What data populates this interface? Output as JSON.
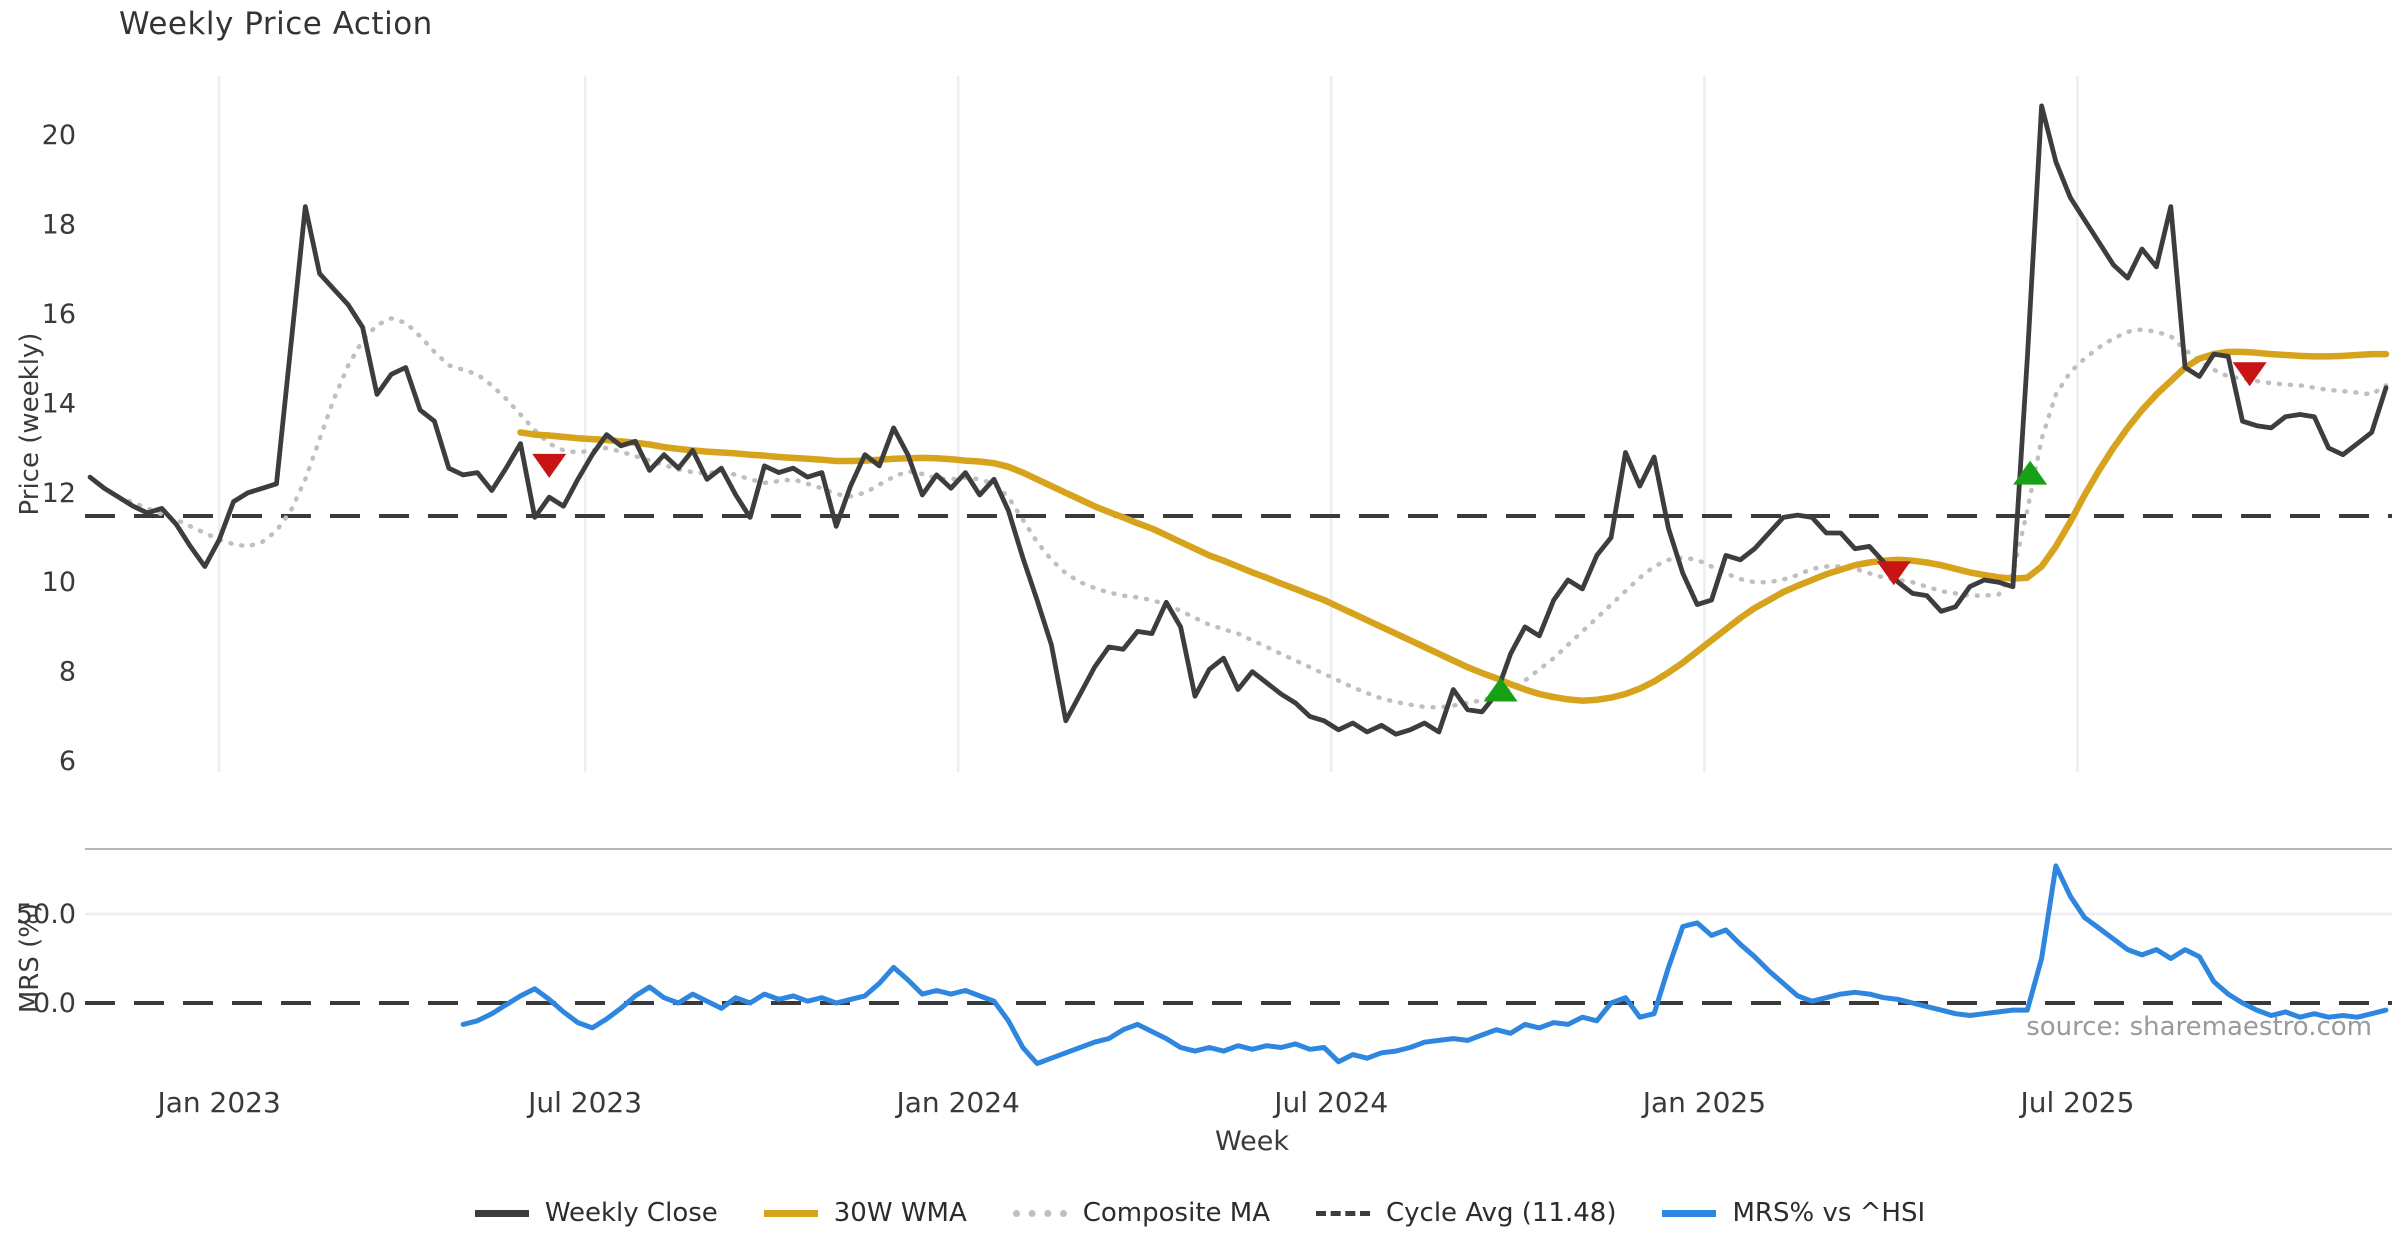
{
  "title": "Weekly Price Action",
  "source_note": "source: sharemaestro.com",
  "colors": {
    "weekly_close": "#3d3d3d",
    "wma_30w": "#d7a31c",
    "composite_ma": "#bfbfbf",
    "cycle_avg": "#3a3a3a",
    "mrs": "#2e86de",
    "sell_marker": "#c81414",
    "buy_marker": "#16a016",
    "grid": "#ededf2",
    "panel_spine": "#b5b5bc",
    "tick_text": "#3a3a3a",
    "background": "#ffffff"
  },
  "axes": {
    "price_label": "Price (weekly)",
    "mrs_label": "MRS (%)",
    "week_label": "Week",
    "price_ticks": [
      6,
      8,
      10,
      12,
      14,
      16,
      18,
      20
    ],
    "mrs_ticks": [
      {
        "value": 0,
        "label": "0.0"
      },
      {
        "value": 50,
        "label": "50.0"
      }
    ],
    "x_ticks": [
      {
        "week": 9,
        "label": "Jan 2023"
      },
      {
        "week": 34.5,
        "label": "Jul 2023"
      },
      {
        "week": 60.5,
        "label": "Jan 2024"
      },
      {
        "week": 86.5,
        "label": "Jul 2024"
      },
      {
        "week": 112.5,
        "label": "Jan 2025"
      },
      {
        "week": 138.5,
        "label": "Jul 2025"
      }
    ]
  },
  "legend": {
    "items": [
      {
        "label": "Weekly Close",
        "style": "solid",
        "color": "#3d3d3d"
      },
      {
        "label": "30W WMA",
        "style": "solid",
        "color": "#d7a31c"
      },
      {
        "label": "Composite MA",
        "style": "dotted",
        "color": "#bfbfbf"
      },
      {
        "label": "Cycle Avg (11.48)",
        "style": "dashed",
        "color": "#3d3d3d"
      },
      {
        "label": "MRS% vs ^HSI",
        "style": "solid",
        "color": "#2e86de"
      }
    ]
  },
  "chart_data": [
    {
      "type": "line",
      "panel": "price",
      "title": "Weekly Price Action",
      "xlabel": "Week",
      "ylabel": "Price (weekly)",
      "ylim": [
        5.6,
        21.3
      ],
      "x_unit": "week index from first data point (early Nov 2022, weekly)",
      "cycle_avg_value": 11.48,
      "series": [
        {
          "name": "Weekly Close",
          "color": "#3d3d3d",
          "style": "solid",
          "start_week": 0,
          "values": [
            12.35,
            12.1,
            11.9,
            11.7,
            11.55,
            11.65,
            11.3,
            10.8,
            10.35,
            10.95,
            11.8,
            12.0,
            12.1,
            12.2,
            15.3,
            18.4,
            16.9,
            16.55,
            16.2,
            15.7,
            14.2,
            14.65,
            14.8,
            13.85,
            13.6,
            12.55,
            12.4,
            12.45,
            12.05,
            12.55,
            13.1,
            11.45,
            11.9,
            11.7,
            12.3,
            12.85,
            13.3,
            13.05,
            13.15,
            12.5,
            12.85,
            12.55,
            12.95,
            12.3,
            12.55,
            11.95,
            11.45,
            12.6,
            12.45,
            12.55,
            12.35,
            12.45,
            11.25,
            12.15,
            12.85,
            12.6,
            13.45,
            12.85,
            11.95,
            12.4,
            12.1,
            12.45,
            11.95,
            12.3,
            11.6,
            10.55,
            9.6,
            8.6,
            6.9,
            7.5,
            8.1,
            8.55,
            8.5,
            8.9,
            8.85,
            9.55,
            9.0,
            7.45,
            8.05,
            8.3,
            7.6,
            8.0,
            7.75,
            7.5,
            7.3,
            7.0,
            6.9,
            6.7,
            6.85,
            6.65,
            6.8,
            6.6,
            6.7,
            6.85,
            6.65,
            7.6,
            7.15,
            7.1,
            7.5,
            8.4,
            9.0,
            8.8,
            9.6,
            10.05,
            9.85,
            10.6,
            11.0,
            12.9,
            12.15,
            12.8,
            11.2,
            10.2,
            9.5,
            9.6,
            10.6,
            10.5,
            10.75,
            11.1,
            11.45,
            11.5,
            11.45,
            11.1,
            11.1,
            10.75,
            10.8,
            10.45,
            10.0,
            9.75,
            9.7,
            9.35,
            9.45,
            9.9,
            10.05,
            10.0,
            9.9,
            15.0,
            20.65,
            19.4,
            18.6,
            18.1,
            17.6,
            17.1,
            16.8,
            17.45,
            17.05,
            18.4,
            14.8,
            14.6,
            15.1,
            15.05,
            13.6,
            13.5,
            13.45,
            13.7,
            13.75,
            13.7,
            13.0,
            12.85,
            13.1,
            13.35,
            14.35
          ]
        },
        {
          "name": "30W WMA",
          "color": "#d7a31c",
          "style": "solid",
          "start_week": 30,
          "values": [
            13.35,
            13.3,
            13.28,
            13.25,
            13.22,
            13.2,
            13.18,
            13.15,
            13.12,
            13.08,
            13.02,
            12.98,
            12.95,
            12.92,
            12.9,
            12.88,
            12.85,
            12.83,
            12.8,
            12.78,
            12.76,
            12.74,
            12.71,
            12.71,
            12.72,
            12.74,
            12.76,
            12.77,
            12.78,
            12.77,
            12.75,
            12.72,
            12.7,
            12.66,
            12.58,
            12.45,
            12.3,
            12.15,
            12.0,
            11.85,
            11.7,
            11.57,
            11.45,
            11.32,
            11.2,
            11.05,
            10.9,
            10.75,
            10.6,
            10.48,
            10.35,
            10.22,
            10.1,
            9.97,
            9.85,
            9.72,
            9.6,
            9.45,
            9.3,
            9.15,
            9.0,
            8.85,
            8.7,
            8.55,
            8.4,
            8.25,
            8.1,
            7.97,
            7.85,
            7.72,
            7.6,
            7.5,
            7.43,
            7.38,
            7.35,
            7.37,
            7.42,
            7.5,
            7.62,
            7.78,
            7.98,
            8.2,
            8.45,
            8.7,
            8.95,
            9.2,
            9.42,
            9.6,
            9.78,
            9.92,
            10.05,
            10.18,
            10.28,
            10.38,
            10.44,
            10.48,
            10.5,
            10.48,
            10.44,
            10.38,
            10.3,
            10.22,
            10.16,
            10.11,
            10.08,
            10.1,
            10.35,
            10.8,
            11.35,
            11.95,
            12.5,
            13.0,
            13.45,
            13.85,
            14.2,
            14.5,
            14.8,
            15.0,
            15.1,
            15.15,
            15.15,
            15.13,
            15.1,
            15.08,
            15.06,
            15.05,
            15.05,
            15.06,
            15.08,
            15.1,
            15.1
          ]
        },
        {
          "name": "Composite MA",
          "color": "#bfbfbf",
          "style": "dotted",
          "start_week": 2,
          "values": [
            11.9,
            11.78,
            11.65,
            11.52,
            11.4,
            11.25,
            11.1,
            10.95,
            10.85,
            10.8,
            10.9,
            11.15,
            11.6,
            12.3,
            13.2,
            14.1,
            14.85,
            15.4,
            15.75,
            15.9,
            15.8,
            15.5,
            15.15,
            14.85,
            14.75,
            14.65,
            14.4,
            14.1,
            13.75,
            13.4,
            13.1,
            12.95,
            12.9,
            12.95,
            13.0,
            12.92,
            12.82,
            12.72,
            12.62,
            12.52,
            12.46,
            12.44,
            12.48,
            12.4,
            12.3,
            12.22,
            12.26,
            12.3,
            12.2,
            12.1,
            11.97,
            11.92,
            12.0,
            12.18,
            12.36,
            12.48,
            12.42,
            12.32,
            12.3,
            12.34,
            12.3,
            12.2,
            11.9,
            11.4,
            10.9,
            10.5,
            10.2,
            10.0,
            9.87,
            9.77,
            9.7,
            9.66,
            9.6,
            9.5,
            9.36,
            9.2,
            9.05,
            8.95,
            8.85,
            8.7,
            8.55,
            8.4,
            8.25,
            8.1,
            7.95,
            7.8,
            7.65,
            7.52,
            7.4,
            7.32,
            7.26,
            7.21,
            7.2,
            7.24,
            7.3,
            7.36,
            7.45,
            7.6,
            7.8,
            8.05,
            8.3,
            8.6,
            8.9,
            9.2,
            9.5,
            9.8,
            10.1,
            10.35,
            10.5,
            10.55,
            10.5,
            10.35,
            10.2,
            10.07,
            10.0,
            10.0,
            10.06,
            10.16,
            10.3,
            10.35,
            10.35,
            10.3,
            10.2,
            10.1,
            10.05,
            10.0,
            9.9,
            9.8,
            9.75,
            9.7,
            9.7,
            9.72,
            10.2,
            11.6,
            13.2,
            14.2,
            14.7,
            15.0,
            15.25,
            15.45,
            15.6,
            15.65,
            15.6,
            15.5,
            15.2,
            14.95,
            14.75,
            14.6,
            14.55,
            14.5,
            14.45,
            14.42,
            14.4,
            14.35,
            14.3,
            14.27,
            14.24,
            14.2,
            14.4
          ]
        }
      ],
      "markers": [
        {
          "type": "sell",
          "week": 32.0,
          "value": 12.6,
          "color": "#c81414"
        },
        {
          "type": "buy",
          "week": 98.3,
          "value": 7.6,
          "color": "#16a016"
        },
        {
          "type": "sell",
          "week": 125.7,
          "value": 10.2,
          "color": "#c81414"
        },
        {
          "type": "buy",
          "week": 135.2,
          "value": 12.45,
          "color": "#16a016"
        },
        {
          "type": "sell",
          "week": 150.5,
          "value": 14.65,
          "color": "#c81414"
        }
      ]
    },
    {
      "type": "line",
      "panel": "mrs",
      "ylabel": "MRS (%)",
      "ylim": [
        -42,
        86
      ],
      "zero_line": 0,
      "series": [
        {
          "name": "MRS% vs ^HSI",
          "color": "#2e86de",
          "style": "solid",
          "start_week": 26,
          "values": [
            -12,
            -10,
            -6,
            -1,
            4,
            8,
            2,
            -5,
            -11,
            -14,
            -9,
            -3,
            4,
            9,
            3,
            0,
            5,
            1,
            -3,
            3,
            0,
            5,
            2,
            4,
            1,
            3,
            0,
            2,
            4,
            11,
            20,
            13,
            5,
            7,
            5,
            7,
            4,
            1,
            -10,
            -25,
            -34,
            -31,
            -28,
            -25,
            -22,
            -20,
            -15,
            -12,
            -16,
            -20,
            -25,
            -27,
            -25,
            -27,
            -24,
            -26,
            -24,
            -25,
            -23,
            -26,
            -25,
            -33,
            -29,
            -31,
            -28,
            -27,
            -25,
            -22,
            -21,
            -20,
            -21,
            -18,
            -15,
            -17,
            -12,
            -14,
            -11,
            -12,
            -8,
            -10,
            0,
            3,
            -8,
            -6,
            20,
            43,
            45,
            38,
            41,
            33,
            26,
            18,
            11,
            4,
            1,
            3,
            5,
            6,
            5,
            3,
            2,
            0,
            -2,
            -4,
            -6,
            -7,
            -6,
            -5,
            -4,
            -4,
            25,
            77,
            60,
            48,
            42,
            36,
            30,
            27,
            30,
            25,
            30,
            26,
            12,
            5,
            0,
            -4,
            -7,
            -5,
            -8,
            -6,
            -8,
            -7,
            -8,
            -6,
            -4
          ]
        }
      ]
    }
  ]
}
